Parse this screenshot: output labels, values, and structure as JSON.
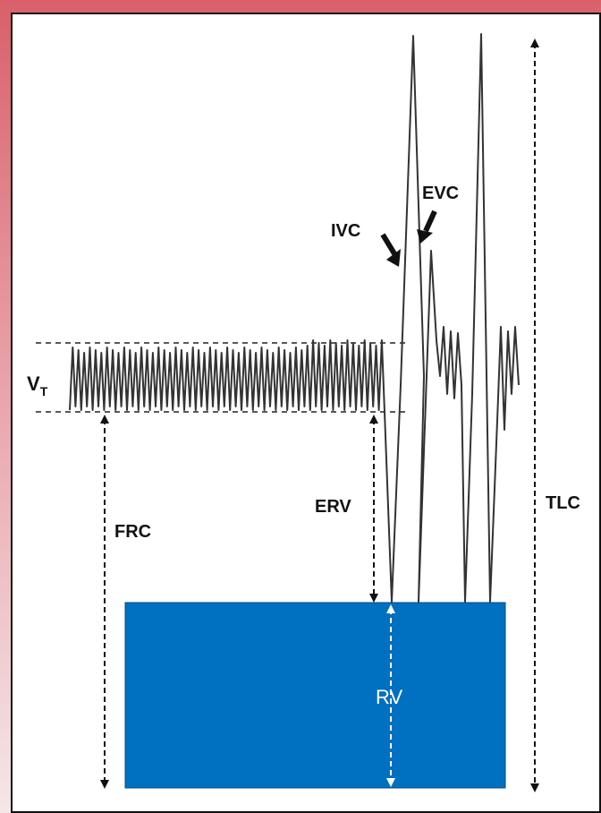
{
  "labels": {
    "vt": "V",
    "vt_sub": "T",
    "frc": "FRC",
    "erv": "ERV",
    "ivc": "IVC",
    "evc": "EVC",
    "tlc": "TLC",
    "rv": "RV"
  },
  "colors": {
    "background_top": "#d9606a",
    "panel": "#ffffff",
    "rv_box": "#0070c0",
    "trace": "#333333",
    "arrows": "#111111"
  }
}
